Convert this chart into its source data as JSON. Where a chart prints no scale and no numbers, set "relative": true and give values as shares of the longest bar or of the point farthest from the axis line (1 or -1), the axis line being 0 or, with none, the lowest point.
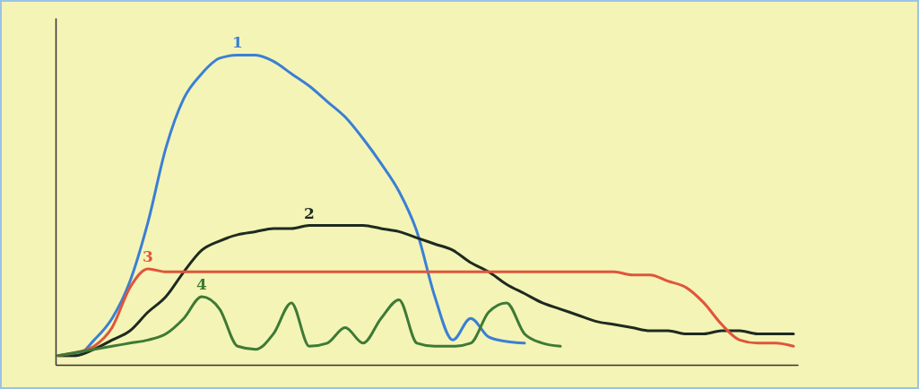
{
  "chart_data": {
    "type": "line",
    "relative": true,
    "categories": [
      null,
      null,
      null,
      null,
      null,
      null,
      null,
      null,
      null,
      null,
      null,
      null,
      null,
      null,
      null,
      null,
      null,
      null,
      null,
      null,
      null,
      null,
      null,
      null,
      null,
      null,
      null,
      null,
      null,
      null,
      null,
      null,
      null,
      null,
      null,
      null,
      null,
      null,
      null,
      null,
      null,
      null
    ],
    "series": [
      {
        "name": "1",
        "color": "#3a7fd5",
        "values": [
          0.03,
          0.03,
          0.08,
          0.15,
          0.27,
          0.46,
          0.7,
          0.86,
          0.94,
          0.99,
          1.0,
          1.0,
          0.98,
          0.94,
          0.9,
          0.85,
          0.8,
          0.73,
          0.65,
          0.56,
          0.43,
          0.22,
          0.08,
          0.15,
          0.09,
          0.075,
          0.07,
          null,
          null,
          null,
          null,
          null,
          null,
          null,
          null,
          null,
          null,
          null,
          null,
          null,
          null,
          null
        ]
      },
      {
        "name": "2",
        "color": "#1e2a20",
        "values": [
          0.03,
          0.03,
          0.05,
          0.08,
          0.11,
          0.17,
          0.22,
          0.3,
          0.37,
          0.4,
          0.42,
          0.43,
          0.44,
          0.44,
          0.45,
          0.45,
          0.45,
          0.45,
          0.44,
          0.43,
          0.41,
          0.39,
          0.37,
          0.33,
          0.3,
          0.26,
          0.23,
          0.2,
          0.18,
          0.16,
          0.14,
          0.13,
          0.12,
          0.11,
          0.11,
          0.1,
          0.1,
          0.11,
          0.11,
          0.1,
          0.1,
          0.1
        ]
      },
      {
        "name": "3",
        "color": "#e0553a",
        "values": [
          0.03,
          0.04,
          0.06,
          0.12,
          0.25,
          0.31,
          0.3,
          0.3,
          0.3,
          0.3,
          0.3,
          0.3,
          0.3,
          0.3,
          0.3,
          0.3,
          0.3,
          0.3,
          0.3,
          0.3,
          0.3,
          0.3,
          0.3,
          0.3,
          0.3,
          0.3,
          0.3,
          0.3,
          0.3,
          0.3,
          0.3,
          0.3,
          0.29,
          0.29,
          0.27,
          0.25,
          0.2,
          0.13,
          0.08,
          0.07,
          0.07,
          0.06
        ]
      },
      {
        "name": "4",
        "color": "#3d7a35",
        "values": [
          0.03,
          0.04,
          0.05,
          0.06,
          0.07,
          0.08,
          0.1,
          0.15,
          0.22,
          0.18,
          0.06,
          0.05,
          0.1,
          0.2,
          0.06,
          0.07,
          0.12,
          0.07,
          0.15,
          0.21,
          0.07,
          0.06,
          0.06,
          0.07,
          0.17,
          0.2,
          0.1,
          0.07,
          0.06,
          null,
          null,
          null,
          null,
          null,
          null,
          null,
          null,
          null,
          null,
          null,
          null,
          null
        ]
      }
    ]
  }
}
